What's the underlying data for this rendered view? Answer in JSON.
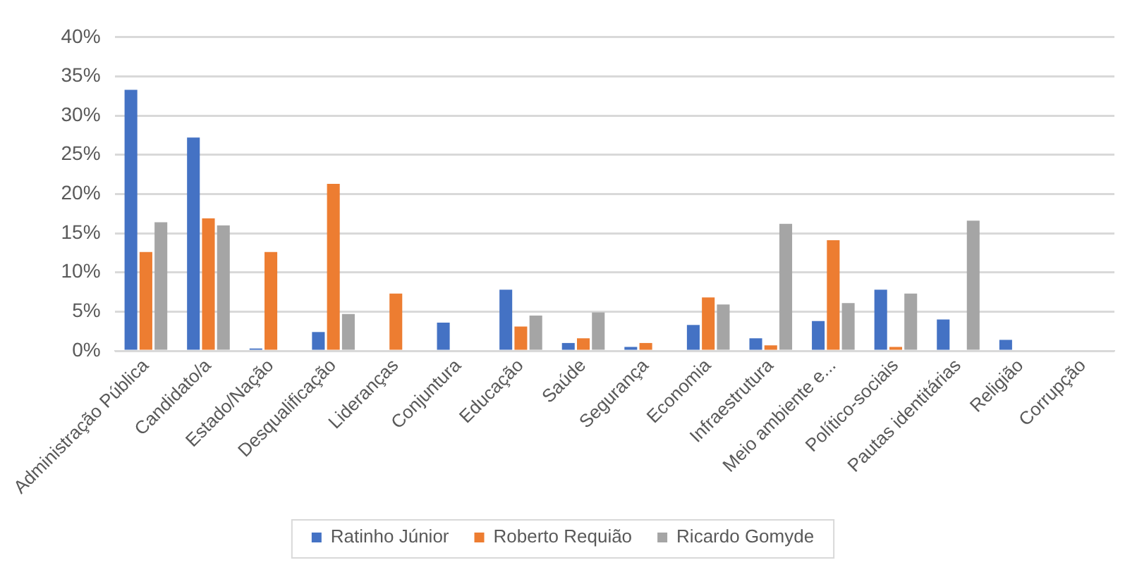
{
  "chart_data": {
    "type": "bar",
    "categories": [
      "Administração Pública",
      "Candidato/a",
      "Estado/Nação",
      "Desqualificação",
      "Lideranças",
      "Conjuntura",
      "Educação",
      "Saúde",
      "Segurança",
      "Economia",
      "Infraestrutura",
      "Meio ambiente e...",
      "Político-sociais",
      "Pautas identitárias",
      "Religião",
      "Corrupção"
    ],
    "series": [
      {
        "name": "Ratinho Júnior",
        "color": "#4472c4",
        "values": [
          33.3,
          27.2,
          0.3,
          2.4,
          0,
          3.6,
          7.8,
          1.0,
          0.5,
          3.3,
          1.6,
          3.8,
          7.8,
          4.0,
          1.4,
          0
        ]
      },
      {
        "name": "Roberto Requião",
        "color": "#ed7d31",
        "values": [
          12.6,
          16.9,
          12.6,
          21.3,
          7.3,
          0,
          3.1,
          1.6,
          1.0,
          6.8,
          0.7,
          14.1,
          0.5,
          0,
          0,
          0
        ]
      },
      {
        "name": "Ricardo Gomyde",
        "color": "#a5a5a5",
        "values": [
          16.4,
          16.0,
          0,
          4.7,
          0,
          0,
          4.5,
          4.9,
          0,
          5.9,
          16.2,
          6.1,
          7.3,
          16.6,
          0,
          0
        ]
      }
    ],
    "ylim": [
      0,
      40
    ],
    "yticks": [
      {
        "value": 0,
        "label": "0%"
      },
      {
        "value": 5,
        "label": "5%"
      },
      {
        "value": 10,
        "label": "10%"
      },
      {
        "value": 15,
        "label": "15%"
      },
      {
        "value": 20,
        "label": "20%"
      },
      {
        "value": 25,
        "label": "25%"
      },
      {
        "value": 30,
        "label": "30%"
      },
      {
        "value": 35,
        "label": "35%"
      },
      {
        "value": 40,
        "label": "40%"
      }
    ],
    "grid": "y",
    "legend": "bottom"
  }
}
